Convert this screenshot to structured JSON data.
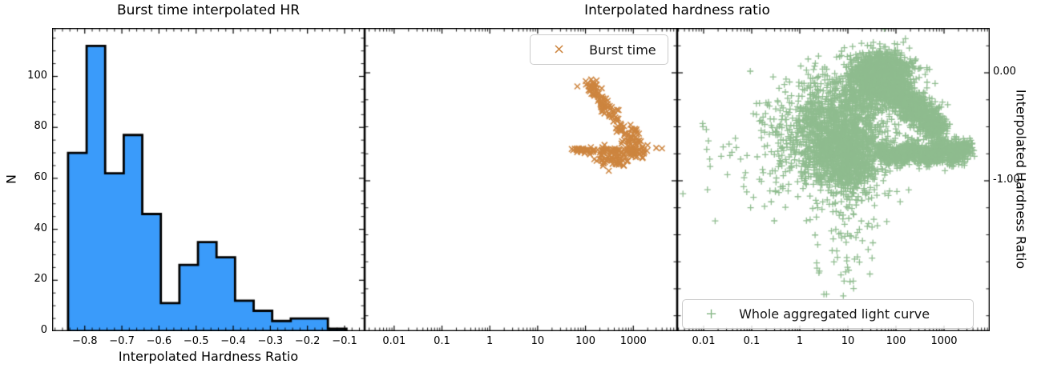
{
  "figure": {
    "titles": {
      "hist": "Burst time interpolated HR",
      "scatter": "Interpolated hardness ratio"
    },
    "hist_xlabel": "Interpolated Hardness Ratio",
    "hist_ylabel": "N",
    "right_ylabel": "Interpolated Hardness Ratio"
  },
  "legends": {
    "burst": "Burst time",
    "burst_marker": "×",
    "whole": "Whole aggregated light curve",
    "whole_marker": "+"
  },
  "colors": {
    "hist_fill": "#3a9bfa",
    "hist_edge": "#000000",
    "burst": "#cd853f",
    "whole": "#8fbc8f",
    "spine": "#000000",
    "tick": "#000000",
    "legend_border": "#cccccc",
    "background": "#ffffff"
  },
  "axes": {
    "hist": {
      "xlim": [
        -0.888,
        -0.046
      ],
      "ylim": [
        0,
        119
      ],
      "xticks": [
        {
          "v": -0.8,
          "label": "−0.8"
        },
        {
          "v": -0.7,
          "label": "−0.7"
        },
        {
          "v": -0.6,
          "label": "−0.6"
        },
        {
          "v": -0.5,
          "label": "−0.5"
        },
        {
          "v": -0.4,
          "label": "−0.4"
        },
        {
          "v": -0.3,
          "label": "−0.3"
        },
        {
          "v": -0.2,
          "label": "−0.2"
        },
        {
          "v": -0.1,
          "label": "−0.1"
        }
      ],
      "yticks": [
        {
          "v": 0,
          "label": "0"
        },
        {
          "v": 20,
          "label": "20"
        },
        {
          "v": 40,
          "label": "40"
        },
        {
          "v": 60,
          "label": "60"
        },
        {
          "v": 80,
          "label": "80"
        },
        {
          "v": 100,
          "label": "100"
        }
      ],
      "x_minor_step": 0.02,
      "y_minor_step": 5
    },
    "scatter_x": {
      "mid_loglim": [
        -2.617,
        3.917
      ],
      "right_loglim": [
        -2.55,
        3.95
      ],
      "ticks": [
        {
          "v": -2,
          "label": "0.01"
        },
        {
          "v": -1,
          "label": "0.1"
        },
        {
          "v": 0,
          "label": "1"
        },
        {
          "v": 1,
          "label": "10"
        },
        {
          "v": 2,
          "label": "100"
        },
        {
          "v": 3,
          "label": "1000"
        }
      ]
    },
    "scatter_y": {
      "lim": [
        -2.393,
        0.415
      ],
      "ticks": [
        {
          "v": 0,
          "label": "0.00"
        },
        {
          "v": -1,
          "label": "-1.00"
        }
      ],
      "minor_step": 0.25
    }
  },
  "chart_data": [
    {
      "type": "histogram",
      "title": "Burst time interpolated HR",
      "xlabel": "Interpolated Hardness Ratio",
      "ylabel": "N",
      "bin_start": -0.845,
      "bin_width": 0.05,
      "counts": [
        70,
        112,
        62,
        77,
        46,
        11,
        26,
        35,
        29,
        12,
        8,
        4,
        5,
        5,
        1
      ],
      "xlim": [
        -0.888,
        -0.046
      ],
      "ylim": [
        0,
        119
      ]
    },
    {
      "type": "scatter",
      "name": "Burst time",
      "marker": "x",
      "marker_px": 7,
      "x_scale": "log10",
      "representation": "cluster-model",
      "clusters": [
        {
          "kind": "band",
          "x0": 2.08,
          "y0": -0.1,
          "x1": 2.78,
          "y1": -0.52,
          "n": 95,
          "sx": 0.055,
          "sy": 0.035,
          "seed": 11
        },
        {
          "kind": "blob",
          "cx": 2.95,
          "cy": -0.6,
          "n": 45,
          "sx": 0.09,
          "sy": 0.05,
          "seed": 12
        },
        {
          "kind": "band",
          "x0": 1.76,
          "y0": -0.715,
          "x1": 2.72,
          "y1": -0.725,
          "n": 60,
          "sx": 0.04,
          "sy": 0.013,
          "seed": 13
        },
        {
          "kind": "blob",
          "cx": 2.6,
          "cy": -0.8,
          "n": 60,
          "sx": 0.17,
          "sy": 0.04,
          "seed": 14
        },
        {
          "kind": "blob",
          "cx": 3.02,
          "cy": -0.73,
          "n": 45,
          "sx": 0.13,
          "sy": 0.04,
          "seed": 15
        },
        {
          "kind": "pts",
          "points": [
            [
              1.83,
              -0.126
            ],
            [
              3.48,
              -0.695
            ],
            [
              3.6,
              -0.7
            ],
            [
              3.3,
              -0.67
            ],
            [
              2.05,
              -0.1
            ]
          ]
        }
      ]
    },
    {
      "type": "scatter",
      "name": "Whole aggregated light curve",
      "marker": "+",
      "marker_px": 8,
      "x_scale": "log10",
      "representation": "cluster-model",
      "clusters": [
        {
          "kind": "blob",
          "cx": 1.72,
          "cy": -0.01,
          "n": 1300,
          "sx": 0.3,
          "sy": 0.1,
          "seed": 21
        },
        {
          "kind": "blob",
          "cx": 1.3,
          "cy": -0.15,
          "n": 250,
          "sx": 0.25,
          "sy": 0.12,
          "seed": 22
        },
        {
          "kind": "band",
          "x0": 1.75,
          "y0": -0.1,
          "x1": 2.95,
          "y1": -0.55,
          "n": 1200,
          "sx": 0.12,
          "sy": 0.075,
          "seed": 23
        },
        {
          "kind": "blob",
          "cx": 1.75,
          "cy": -0.74,
          "n": 160,
          "sx": 0.1,
          "sy": 0.04,
          "seed": 24
        },
        {
          "kind": "blob",
          "cx": 2.05,
          "cy": -0.78,
          "n": 180,
          "sx": 0.1,
          "sy": 0.04,
          "seed": 25
        },
        {
          "kind": "blob",
          "cx": 2.35,
          "cy": -0.72,
          "n": 200,
          "sx": 0.12,
          "sy": 0.045,
          "seed": 26
        },
        {
          "kind": "blob",
          "cx": 2.65,
          "cy": -0.78,
          "n": 200,
          "sx": 0.11,
          "sy": 0.04,
          "seed": 27
        },
        {
          "kind": "blob",
          "cx": 2.95,
          "cy": -0.72,
          "n": 220,
          "sx": 0.13,
          "sy": 0.05,
          "seed": 28
        },
        {
          "kind": "blob",
          "cx": 3.25,
          "cy": -0.74,
          "n": 240,
          "sx": 0.13,
          "sy": 0.05,
          "seed": 29
        },
        {
          "kind": "blob",
          "cx": 3.45,
          "cy": -0.68,
          "n": 60,
          "sx": 0.06,
          "sy": 0.03,
          "seed": 30
        },
        {
          "kind": "blob",
          "cx": 0.75,
          "cy": -0.58,
          "n": 1700,
          "sx": 0.52,
          "sy": 0.26,
          "seed": 31
        },
        {
          "kind": "blob",
          "cx": 1.05,
          "cy": -0.8,
          "n": 600,
          "sx": 0.28,
          "sy": 0.17,
          "seed": 32
        },
        {
          "kind": "blob",
          "cx": -0.8,
          "cy": -0.72,
          "n": 75,
          "sx": 0.55,
          "sy": 0.28,
          "seed": 33
        },
        {
          "kind": "blob",
          "cx": 0.95,
          "cy": -1.52,
          "n": 65,
          "sx": 0.38,
          "sy": 0.33,
          "seed": 34
        },
        {
          "kind": "pts",
          "points": [
            [
              -2.43,
              -1.12
            ],
            [
              -2.02,
              -0.47
            ],
            [
              -1.9,
              -0.63
            ],
            [
              3.55,
              -0.7
            ],
            [
              3.62,
              -0.72
            ],
            [
              3.58,
              -0.66
            ]
          ]
        }
      ]
    }
  ]
}
